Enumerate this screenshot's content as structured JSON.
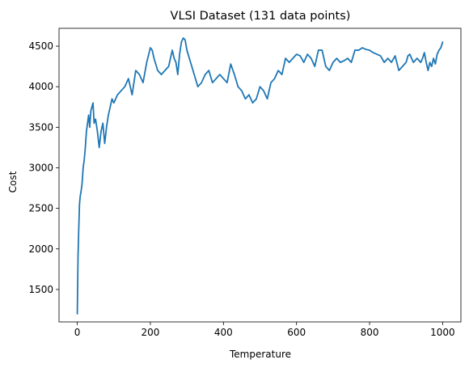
{
  "chart_data": {
    "type": "line",
    "title": "VLSI Dataset (131 data points)",
    "xlabel": "Temperature",
    "ylabel": "Cost",
    "xlim": [
      -50,
      1050
    ],
    "ylim": [
      1100,
      4720
    ],
    "xticks": [
      0,
      200,
      400,
      600,
      800,
      1000
    ],
    "yticks": [
      1500,
      2000,
      2500,
      3000,
      3500,
      4000,
      4500
    ],
    "grid": false,
    "legend": "none",
    "series": [
      {
        "color": "#1f77b4",
        "x": [
          0,
          2,
          4,
          6,
          8,
          10,
          13,
          16,
          19,
          22,
          25,
          28,
          31,
          34,
          37,
          40,
          43,
          46,
          50,
          55,
          60,
          65,
          70,
          75,
          80,
          85,
          90,
          95,
          100,
          110,
          120,
          130,
          140,
          150,
          160,
          170,
          180,
          190,
          200,
          205,
          210,
          220,
          230,
          240,
          250,
          260,
          265,
          270,
          275,
          280,
          285,
          290,
          295,
          300,
          310,
          320,
          330,
          340,
          350,
          360,
          370,
          380,
          390,
          400,
          410,
          420,
          430,
          440,
          450,
          460,
          470,
          480,
          490,
          500,
          510,
          520,
          530,
          540,
          550,
          560,
          570,
          580,
          590,
          600,
          610,
          620,
          630,
          640,
          650,
          660,
          670,
          680,
          690,
          700,
          710,
          720,
          730,
          740,
          750,
          760,
          770,
          780,
          790,
          800,
          810,
          820,
          830,
          840,
          850,
          860,
          870,
          880,
          890,
          900,
          905,
          910,
          920,
          930,
          940,
          945,
          950,
          955,
          960,
          965,
          970,
          975,
          980,
          985,
          990,
          995,
          1000
        ],
        "y": [
          1200,
          1900,
          2250,
          2550,
          2650,
          2700,
          2800,
          3000,
          3100,
          3250,
          3450,
          3550,
          3650,
          3500,
          3700,
          3750,
          3800,
          3550,
          3600,
          3450,
          3250,
          3450,
          3550,
          3300,
          3500,
          3650,
          3750,
          3850,
          3800,
          3900,
          3950,
          4000,
          4100,
          3900,
          4200,
          4150,
          4050,
          4300,
          4480,
          4450,
          4350,
          4200,
          4150,
          4200,
          4250,
          4450,
          4350,
          4300,
          4150,
          4400,
          4550,
          4600,
          4580,
          4450,
          4300,
          4150,
          4000,
          4050,
          4150,
          4200,
          4050,
          4100,
          4150,
          4100,
          4050,
          4280,
          4150,
          4000,
          3950,
          3850,
          3900,
          3800,
          3850,
          4000,
          3950,
          3850,
          4050,
          4100,
          4200,
          4150,
          4350,
          4300,
          4350,
          4400,
          4380,
          4300,
          4400,
          4350,
          4250,
          4450,
          4450,
          4250,
          4200,
          4300,
          4350,
          4300,
          4320,
          4350,
          4300,
          4450,
          4450,
          4480,
          4460,
          4450,
          4420,
          4400,
          4380,
          4300,
          4350,
          4300,
          4380,
          4200,
          4250,
          4300,
          4380,
          4400,
          4300,
          4350,
          4300,
          4350,
          4420,
          4300,
          4200,
          4300,
          4250,
          4350,
          4280,
          4400,
          4450,
          4480,
          4550
        ]
      }
    ]
  }
}
